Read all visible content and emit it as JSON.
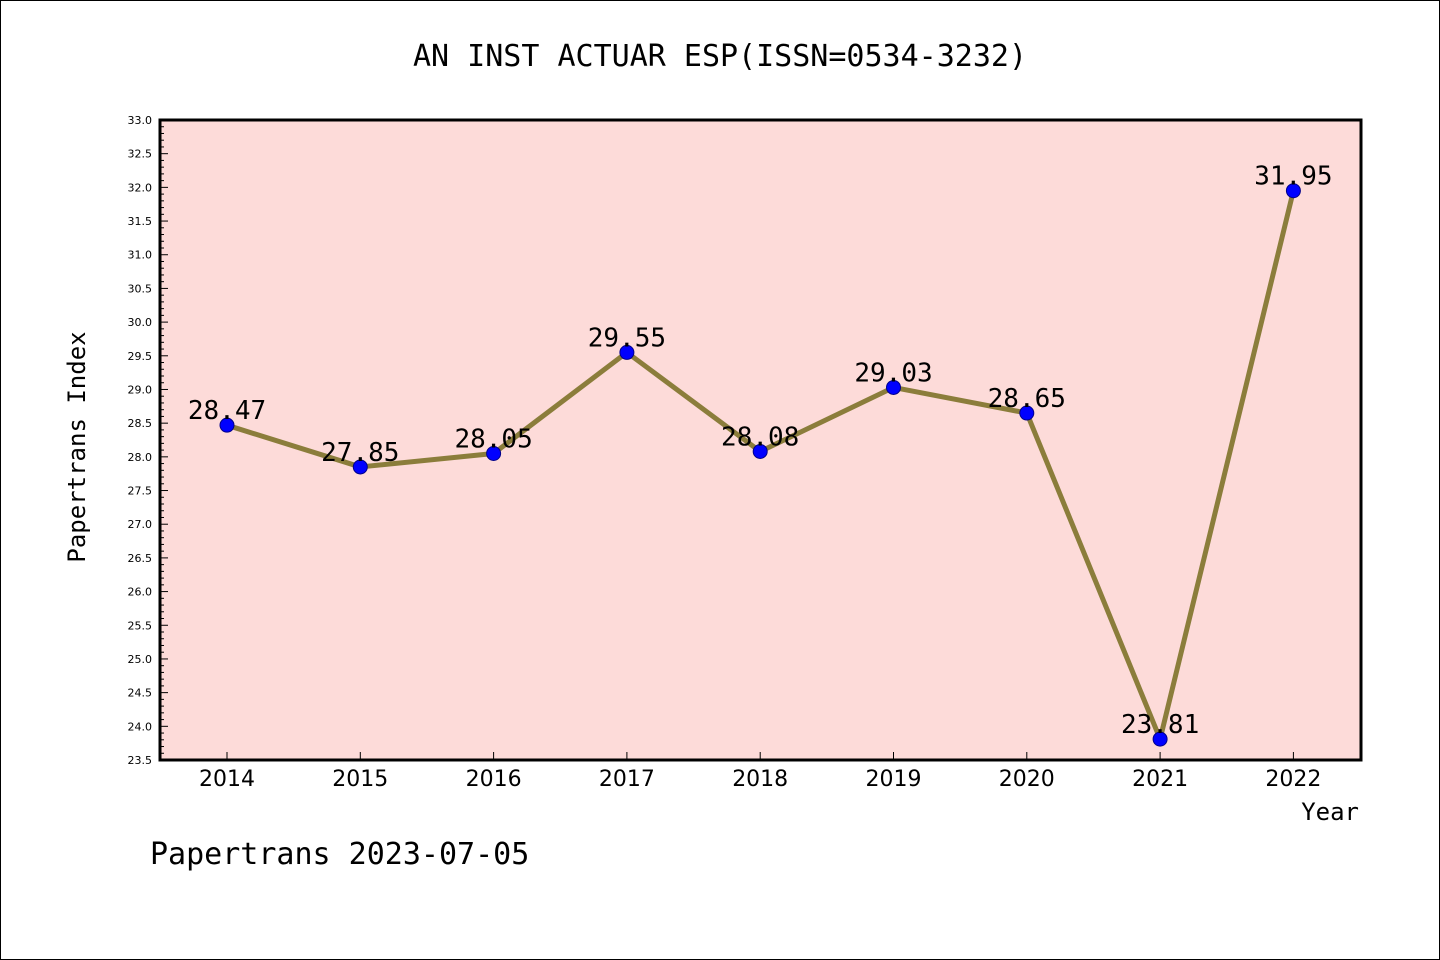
{
  "chart_data": {
    "type": "line",
    "title": "AN INST ACTUAR ESP(ISSN=0534-3232)",
    "xlabel": "Year",
    "ylabel": "Papertrans Index",
    "footer": "Papertrans 2023-07-05",
    "categories": [
      "2014",
      "2015",
      "2016",
      "2017",
      "2018",
      "2019",
      "2020",
      "2021",
      "2022"
    ],
    "series": [
      {
        "values": [
          28.47,
          27.85,
          28.05,
          29.55,
          28.08,
          29.03,
          28.65,
          23.81,
          31.95
        ],
        "labels": [
          "28.47",
          "27.85",
          "28.05",
          "29.55",
          "28.08",
          "29.03",
          "28.65",
          "23.81",
          "31.95"
        ]
      }
    ],
    "ylim": [
      23.5,
      33.0
    ],
    "yticks": [
      "23.5",
      "24.0",
      "24.5",
      "25.0",
      "25.5",
      "26.0",
      "26.5",
      "27.0",
      "27.5",
      "28.0",
      "28.5",
      "29.0",
      "29.5",
      "30.0",
      "30.5",
      "31.0",
      "31.5",
      "32.0",
      "32.5",
      "33.0"
    ],
    "grid": false,
    "colors": {
      "plot_background": "#fddbd9",
      "line": "#8b7d3b",
      "marker": "#0000ff"
    }
  }
}
